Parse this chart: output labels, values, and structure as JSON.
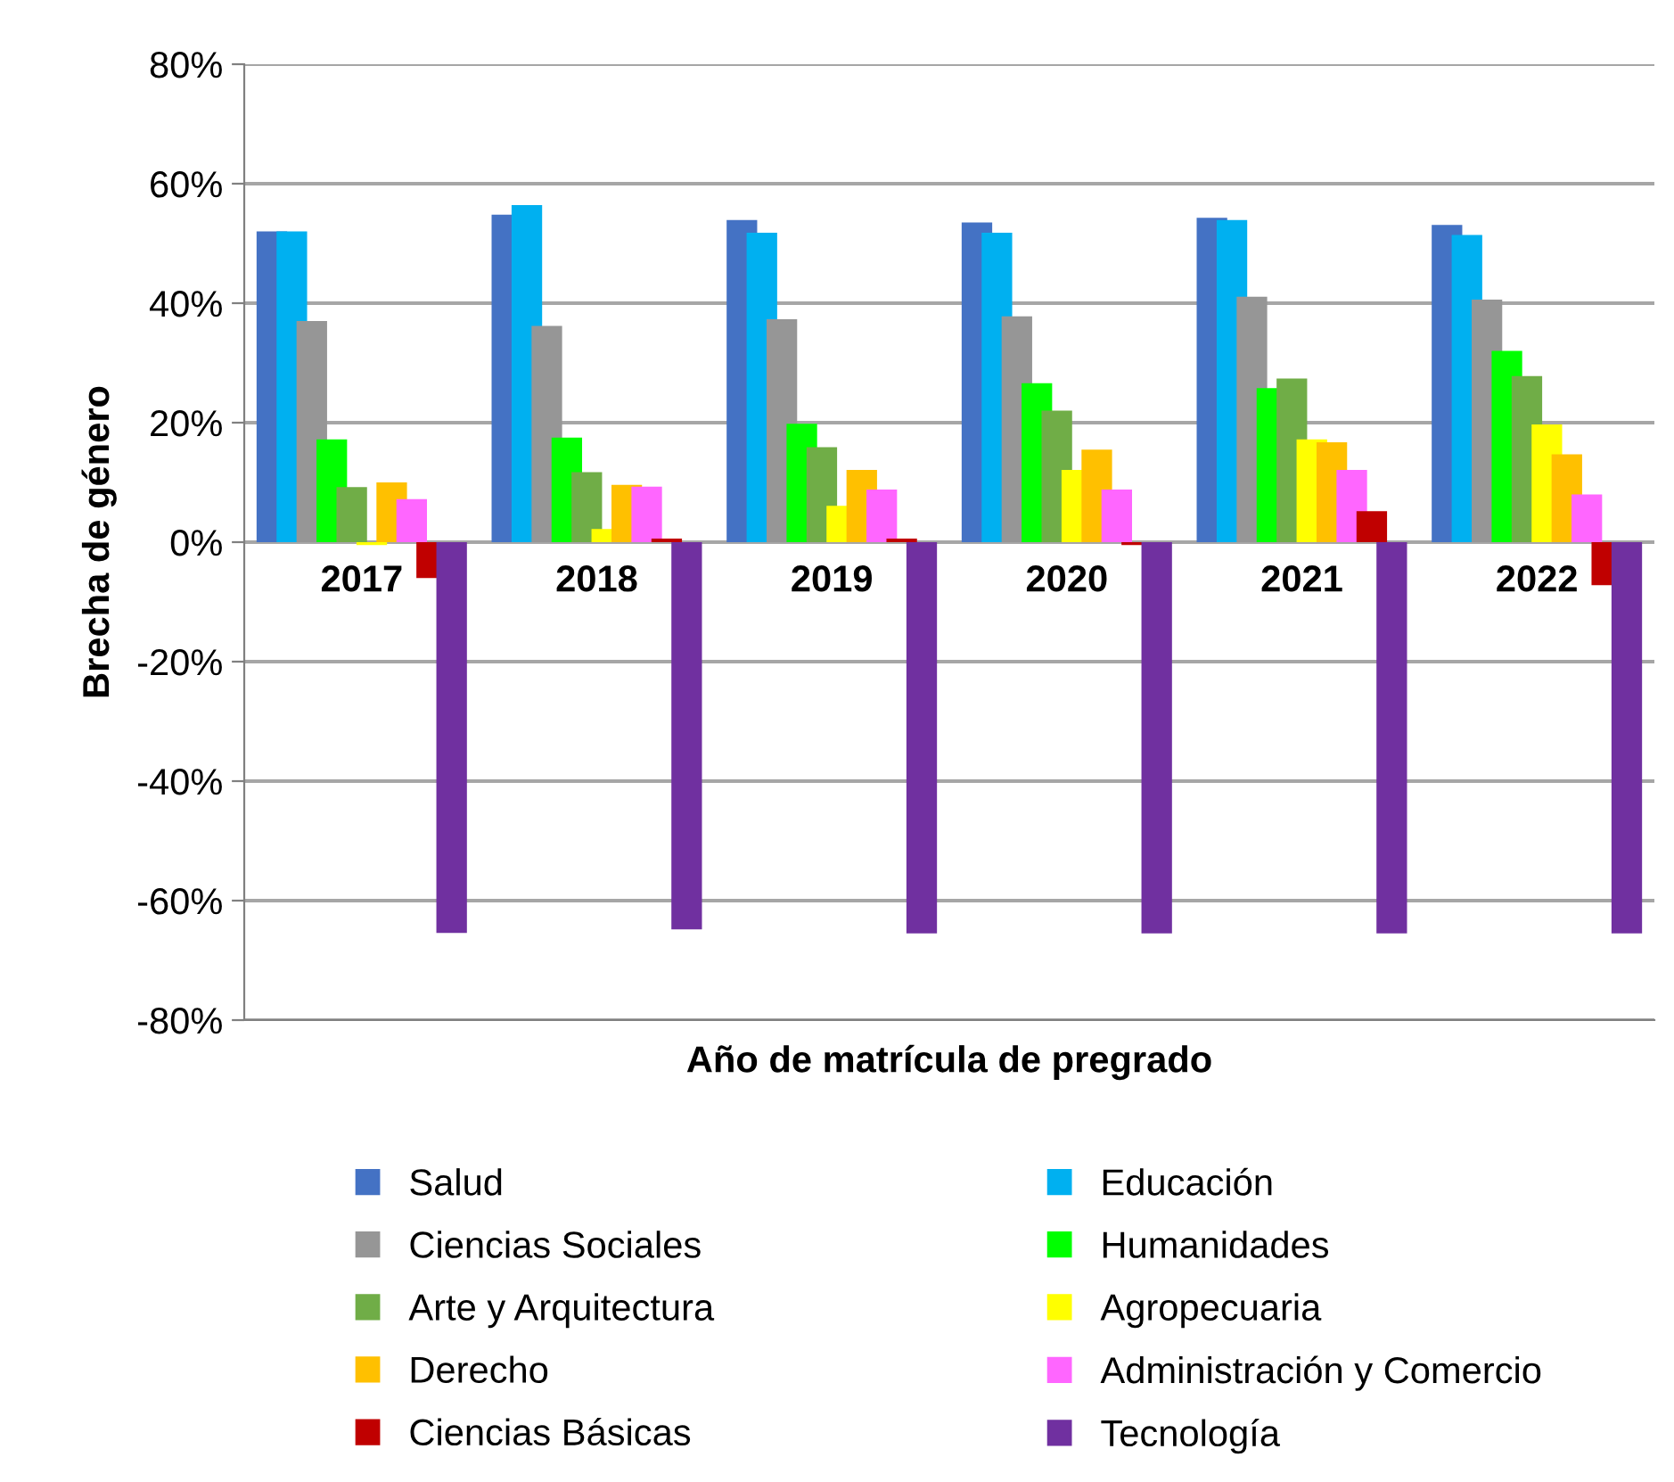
{
  "chart_data": {
    "type": "bar",
    "xlabel": "Año de matrícula de pregrado",
    "ylabel": "Brecha de género",
    "categories": [
      "2017",
      "2018",
      "2019",
      "2020",
      "2021",
      "2022"
    ],
    "series": [
      {
        "name": "Salud",
        "color": "#4472c4",
        "values": [
          52,
          54.8,
          53.9,
          53.5,
          54.3,
          53.1
        ]
      },
      {
        "name": "Educación",
        "color": "#00b0f0",
        "values": [
          52,
          56.4,
          51.8,
          51.8,
          53.9,
          51.4
        ]
      },
      {
        "name": "Ciencias Sociales",
        "color": "#969696",
        "values": [
          37,
          36.2,
          37.3,
          37.8,
          41.1,
          40.6
        ]
      },
      {
        "name": "Humanidades",
        "color": "#00ff00",
        "values": [
          17.2,
          17.5,
          19.8,
          26.6,
          25.8,
          32
        ]
      },
      {
        "name": "Arte y Arquitectura",
        "color": "#70ad47",
        "values": [
          9.2,
          11.7,
          15.9,
          22,
          27.4,
          27.8
        ]
      },
      {
        "name": "Agropecuaria",
        "color": "#ffff00",
        "values": [
          -0.5,
          2.2,
          6.1,
          12.1,
          17.2,
          19.7
        ]
      },
      {
        "name": "Derecho",
        "color": "#ffc000",
        "values": [
          10,
          9.6,
          12.1,
          15.5,
          16.7,
          14.7
        ]
      },
      {
        "name": "Administración y Comercio",
        "color": "#ff66ff",
        "values": [
          7.2,
          9.3,
          8.8,
          8.8,
          12.1,
          8
        ]
      },
      {
        "name": "Ciencias Básicas",
        "color": "#c00000",
        "values": [
          -6,
          0.6,
          0.6,
          -0.5,
          5.2,
          -7.2
        ]
      },
      {
        "name": "Tecnología",
        "color": "#7030a0",
        "values": [
          -65.4,
          -64.8,
          -65.5,
          -65.5,
          -65.5,
          -65.5
        ]
      }
    ],
    "ylim": [
      -80,
      80
    ],
    "yticks": [
      {
        "value": -80,
        "label": "-80%"
      },
      {
        "value": -60,
        "label": "-60%"
      },
      {
        "value": -40,
        "label": "-40%"
      },
      {
        "value": -20,
        "label": "-20%"
      },
      {
        "value": 0,
        "label": "0%"
      },
      {
        "value": 20,
        "label": "20%"
      },
      {
        "value": 40,
        "label": "40%"
      },
      {
        "value": 60,
        "label": "60%"
      },
      {
        "value": 80,
        "label": "80%"
      }
    ],
    "grid": "y",
    "legend": "bottom"
  }
}
